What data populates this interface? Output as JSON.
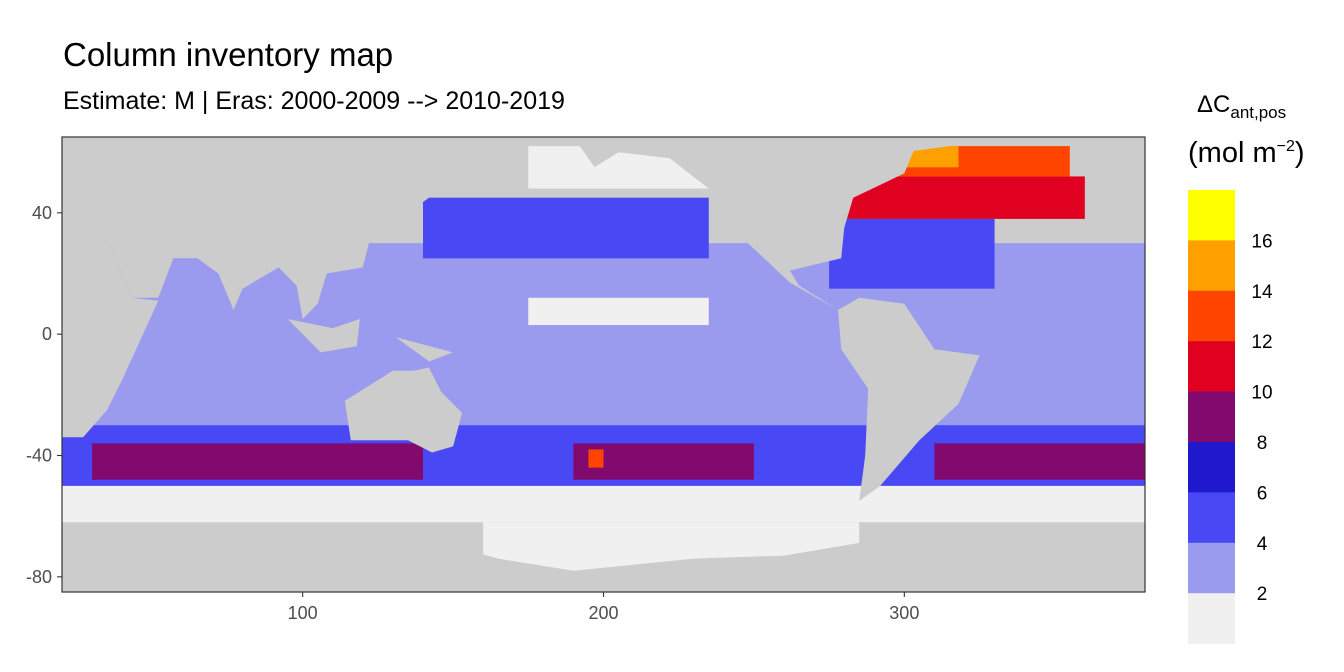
{
  "header": {
    "title": "Column inventory map",
    "subtitle": "Estimate: M  | Eras: 2000-2009 --> 2010-2019"
  },
  "legend": {
    "title_symbol": "ΔC",
    "title_subscript": "ant,pos",
    "unit_prefix": "(mol m",
    "unit_exponent": "−2",
    "unit_suffix": ")",
    "breaks": [
      "2",
      "4",
      "6",
      "8",
      "10",
      "12",
      "14",
      "16"
    ],
    "colors": [
      "#f0f0f0",
      "#9a9aee",
      "#4848f4",
      "#2018cc",
      "#820a6e",
      "#e00020",
      "#ff4400",
      "#ff9f00",
      "#ffff00"
    ]
  },
  "colors": {
    "land": "#cccccc",
    "panel_border": "#333333"
  },
  "chart_data": {
    "type": "heatmap",
    "title": "Column inventory map",
    "subtitle": "Estimate: M  | Eras: 2000-2009 --> 2010-2019",
    "xlabel": "",
    "ylabel": "",
    "xlim": [
      20,
      380
    ],
    "ylim": [
      -85,
      65
    ],
    "x_ticks": [
      100,
      200,
      300
    ],
    "y_ticks": [
      40,
      0,
      -40,
      -80
    ],
    "grid": false,
    "legend_position": "right",
    "color_scale": {
      "variable": "ΔCant,pos (mol m-2)",
      "bins": [
        {
          "range": [
            0,
            2
          ],
          "color": "#f0f0f0"
        },
        {
          "range": [
            2,
            4
          ],
          "color": "#9a9aee"
        },
        {
          "range": [
            4,
            6
          ],
          "color": "#4848f4"
        },
        {
          "range": [
            6,
            8
          ],
          "color": "#2018cc"
        },
        {
          "range": [
            8,
            10
          ],
          "color": "#820a6e"
        },
        {
          "range": [
            10,
            12
          ],
          "color": "#e00020"
        },
        {
          "range": [
            12,
            14
          ],
          "color": "#ff4400"
        },
        {
          "range": [
            14,
            16
          ],
          "color": "#ff9f00"
        },
        {
          "range": [
            16,
            18
          ],
          "color": "#ffff00"
        }
      ]
    },
    "regions": [
      {
        "lon": [
          20,
          380
        ],
        "lat": [
          -62,
          -50
        ],
        "bin": 0
      },
      {
        "lon": [
          160,
          285
        ],
        "lat": [
          -78,
          -62
        ],
        "bin": 0
      },
      {
        "lon": [
          20,
          380
        ],
        "lat": [
          -30,
          30
        ],
        "bin": 1
      },
      {
        "lon": [
          175,
          265
        ],
        "lat": [
          48,
          62
        ],
        "bin": 0
      },
      {
        "lon": [
          175,
          235
        ],
        "lat": [
          3,
          12
        ],
        "bin": 0
      },
      {
        "lon": [
          140,
          235
        ],
        "lat": [
          25,
          45
        ],
        "bin": 2
      },
      {
        "lon": [
          20,
          380
        ],
        "lat": [
          -50,
          -30
        ],
        "bin": 2
      },
      {
        "lon": [
          275,
          330
        ],
        "lat": [
          15,
          38
        ],
        "bin": 2
      },
      {
        "lon": [
          30,
          140
        ],
        "lat": [
          -48,
          -36
        ],
        "bin": 4
      },
      {
        "lon": [
          190,
          250
        ],
        "lat": [
          -48,
          -36
        ],
        "bin": 4
      },
      {
        "lon": [
          310,
          380
        ],
        "lat": [
          -48,
          -36
        ],
        "bin": 4
      },
      {
        "lon": [
          265,
          360
        ],
        "lat": [
          38,
          52
        ],
        "bin": 5
      },
      {
        "lon": [
          295,
          355
        ],
        "lat": [
          52,
          62
        ],
        "bin": 6
      },
      {
        "lon": [
          300,
          318
        ],
        "lat": [
          55,
          62
        ],
        "bin": 7
      },
      {
        "lon": [
          195,
          200
        ],
        "lat": [
          -44,
          -38
        ],
        "bin": 6
      }
    ]
  }
}
